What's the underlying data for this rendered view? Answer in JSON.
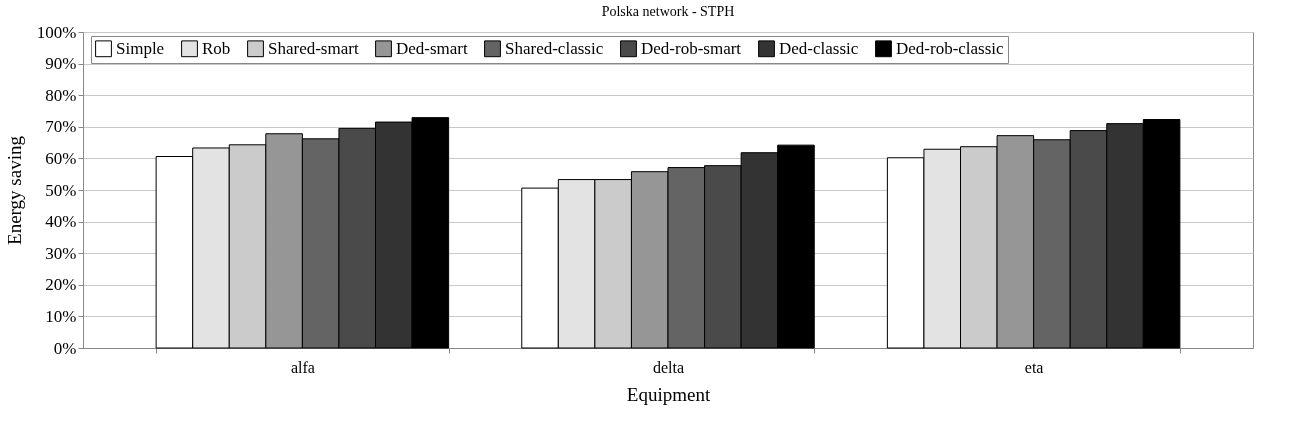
{
  "chart_data": {
    "type": "bar",
    "title": "Polska network - STPH",
    "xlabel": "Equipment",
    "ylabel": "Energy saving",
    "categories": [
      "alfa",
      "delta",
      "eta"
    ],
    "series": [
      {
        "name": "Simple",
        "color": "#ffffff",
        "values": [
          60.6,
          50.6,
          60.2
        ]
      },
      {
        "name": "Rob",
        "color": "#e3e3e3",
        "values": [
          63.3,
          53.3,
          62.9
        ]
      },
      {
        "name": "Shared-smart",
        "color": "#cbcbcb",
        "values": [
          64.3,
          53.3,
          63.7
        ]
      },
      {
        "name": "Ded-smart",
        "color": "#969696",
        "values": [
          67.8,
          55.8,
          67.2
        ]
      },
      {
        "name": "Shared-classic",
        "color": "#646464",
        "values": [
          66.2,
          57.1,
          65.9
        ]
      },
      {
        "name": "Ded-rob-smart",
        "color": "#4a4a4a",
        "values": [
          69.5,
          57.7,
          68.8
        ]
      },
      {
        "name": "Ded-classic",
        "color": "#333333",
        "values": [
          71.5,
          61.8,
          71.0
        ]
      },
      {
        "name": "Ded-rob-classic",
        "color": "#000000",
        "values": [
          72.9,
          64.2,
          72.3
        ]
      }
    ],
    "ylim": [
      0,
      100
    ],
    "yticks": [
      {
        "value": 0,
        "label": "0%"
      },
      {
        "value": 10,
        "label": "10%"
      },
      {
        "value": 20,
        "label": "20%"
      },
      {
        "value": 30,
        "label": "30%"
      },
      {
        "value": 40,
        "label": "40%"
      },
      {
        "value": 50,
        "label": "50%"
      },
      {
        "value": 60,
        "label": "60%"
      },
      {
        "value": 70,
        "label": "70%"
      },
      {
        "value": 80,
        "label": "80%"
      },
      {
        "value": 90,
        "label": "90%"
      },
      {
        "value": 100,
        "label": "100%"
      }
    ],
    "grid": "y",
    "legend": "top"
  }
}
